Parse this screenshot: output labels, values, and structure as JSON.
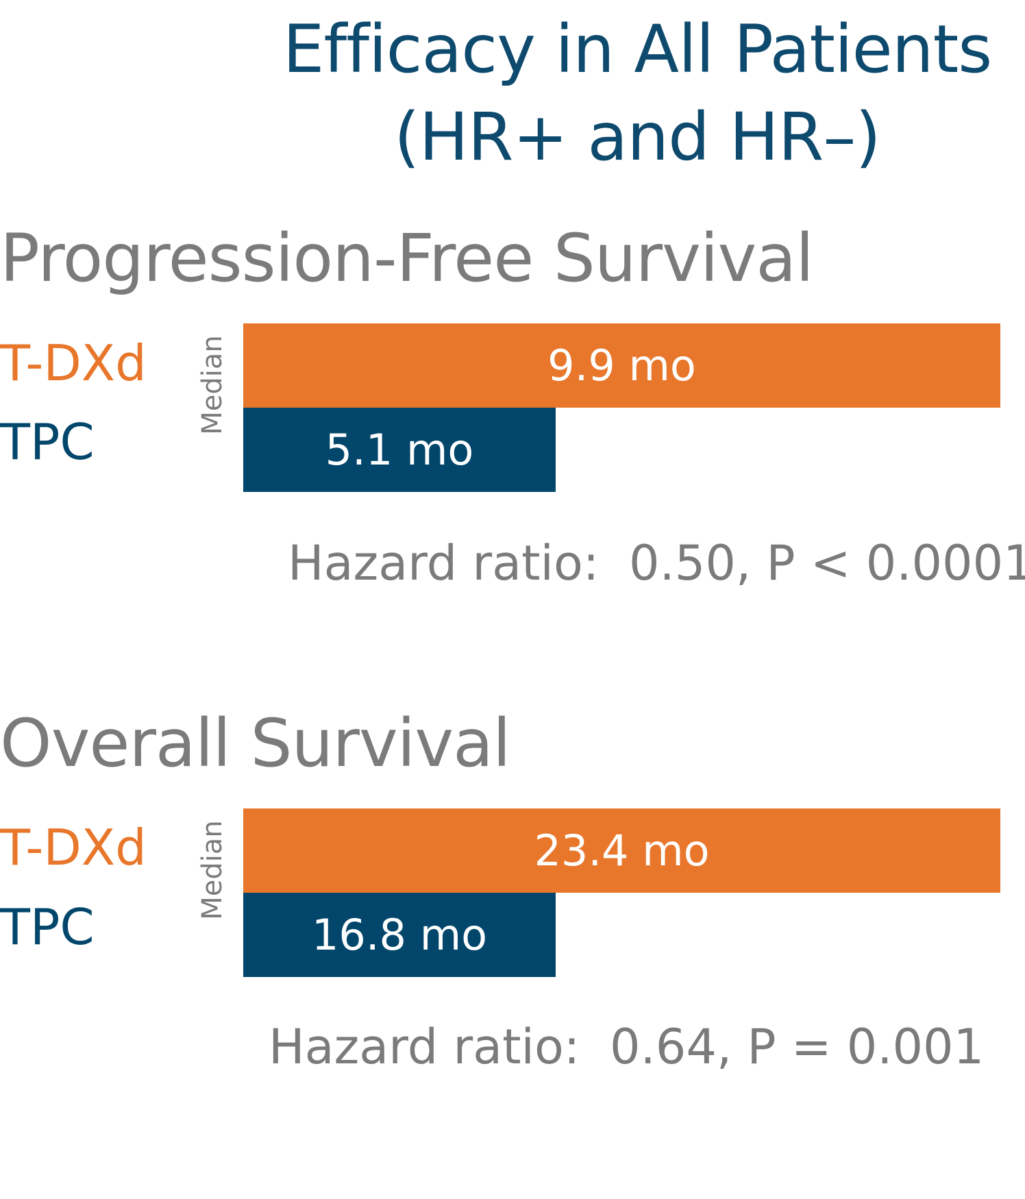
{
  "title": [
    "Efficacy in All Patients",
    "(HR+ and HR–)"
  ],
  "colors": {
    "title": "#0e4a6e",
    "t_dxd": "#e8772b",
    "tpc": "#02476b",
    "text_gray": "#7b7b7b",
    "bar_label": "#ffffff"
  },
  "chart_data": [
    {
      "type": "bar",
      "orientation": "horizontal",
      "title": "Progression-Free Survival",
      "axis_label": "Median",
      "series": [
        {
          "name": "T-DXd",
          "value": 9.9,
          "label": "9.9 mo",
          "color": "#e8772b"
        },
        {
          "name": "TPC",
          "value": 5.1,
          "label": "5.1 mo",
          "color": "#02476b"
        }
      ],
      "hazard_ratio": {
        "label": "Hazard ratio:",
        "value": "0.50, P < 0.0001"
      }
    },
    {
      "type": "bar",
      "orientation": "horizontal",
      "title": "Overall Survival",
      "axis_label": "Median",
      "series": [
        {
          "name": "T-DXd",
          "value": 23.4,
          "label": "23.4 mo",
          "color": "#e8772b"
        },
        {
          "name": "TPC",
          "value": 16.8,
          "label": "16.8 mo",
          "color": "#02476b"
        }
      ],
      "hazard_ratio": {
        "label": "Hazard ratio:",
        "value": "0.64, P = 0.001"
      }
    }
  ]
}
